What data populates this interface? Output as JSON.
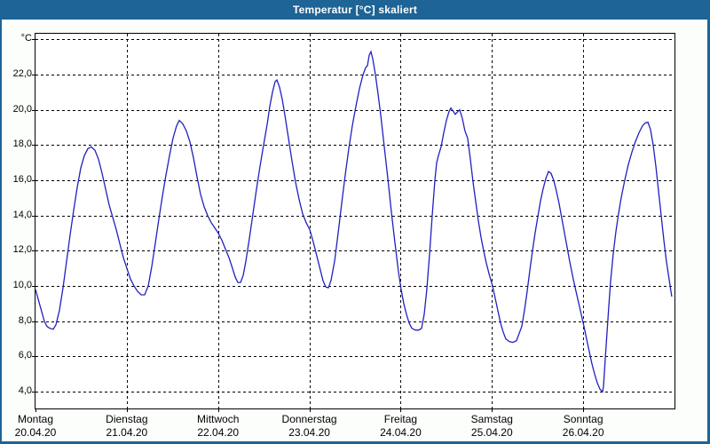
{
  "window": {
    "title": "Temperatur [°C] skaliert"
  },
  "colors": {
    "title_bar": "#1e6496",
    "title_text": "#ffffff",
    "window_border": "#1e6496",
    "window_background": "#fcfefc",
    "plot_background": "#ffffff",
    "plot_border": "#000000",
    "gridline": "#000000",
    "series_line": "#2020c0",
    "label_text": "#000000"
  },
  "chart_data": {
    "type": "line",
    "title": "Temperatur [°C] skaliert",
    "y_unit_label": "°C",
    "ylabel": "Temperatur",
    "xlabel": "",
    "grid": "dashed",
    "legend": "none",
    "ylim": [
      3.05,
      24.32
    ],
    "xlim_days": [
      0,
      7
    ],
    "y_gridlines": [
      4,
      6,
      8,
      10,
      12,
      14,
      16,
      18,
      20,
      22,
      24
    ],
    "y_tick_labels": [
      {
        "value": 4,
        "label": "4,0"
      },
      {
        "value": 6,
        "label": "6,0"
      },
      {
        "value": 8,
        "label": "8,0"
      },
      {
        "value": 10,
        "label": "10,0"
      },
      {
        "value": 12,
        "label": "12,0"
      },
      {
        "value": 14,
        "label": "14,0"
      },
      {
        "value": 16,
        "label": "16,0"
      },
      {
        "value": 18,
        "label": "18,0"
      },
      {
        "value": 20,
        "label": "20,0"
      },
      {
        "value": 22,
        "label": "22,0"
      },
      {
        "value": 24,
        "label": "°C"
      }
    ],
    "x_ticks": [
      {
        "day": 0,
        "name": "Montag",
        "date": "20.04.20"
      },
      {
        "day": 1,
        "name": "Dienstag",
        "date": "21.04.20"
      },
      {
        "day": 2,
        "name": "Mittwoch",
        "date": "22.04.20"
      },
      {
        "day": 3,
        "name": "Donnerstag",
        "date": "23.04.20"
      },
      {
        "day": 4,
        "name": "Freitag",
        "date": "24.04.20"
      },
      {
        "day": 5,
        "name": "Samstag",
        "date": "25.04.20"
      },
      {
        "day": 6,
        "name": "Sonntag",
        "date": "26.04.20"
      }
    ],
    "series": [
      {
        "name": "Temperatur",
        "color": "#2020c0",
        "points": [
          [
            0.0,
            9.8
          ],
          [
            0.049,
            8.9
          ],
          [
            0.097,
            8.0
          ],
          [
            0.126,
            7.7
          ],
          [
            0.156,
            7.6
          ],
          [
            0.194,
            7.55
          ],
          [
            0.224,
            7.8
          ],
          [
            0.262,
            8.6
          ],
          [
            0.301,
            9.9
          ],
          [
            0.34,
            11.4
          ],
          [
            0.379,
            12.9
          ],
          [
            0.418,
            14.3
          ],
          [
            0.457,
            15.6
          ],
          [
            0.496,
            16.7
          ],
          [
            0.535,
            17.4
          ],
          [
            0.574,
            17.8
          ],
          [
            0.612,
            17.9
          ],
          [
            0.651,
            17.7
          ],
          [
            0.69,
            17.2
          ],
          [
            0.729,
            16.4
          ],
          [
            0.768,
            15.5
          ],
          [
            0.807,
            14.6
          ],
          [
            0.846,
            13.9
          ],
          [
            0.885,
            13.2
          ],
          [
            0.924,
            12.4
          ],
          [
            0.963,
            11.6
          ],
          [
            1.001,
            11.0
          ],
          [
            1.04,
            10.4
          ],
          [
            1.079,
            10.0
          ],
          [
            1.118,
            9.7
          ],
          [
            1.157,
            9.5
          ],
          [
            1.196,
            9.5
          ],
          [
            1.235,
            10.0
          ],
          [
            1.274,
            11.1
          ],
          [
            1.312,
            12.4
          ],
          [
            1.351,
            13.8
          ],
          [
            1.39,
            15.1
          ],
          [
            1.429,
            16.3
          ],
          [
            1.468,
            17.4
          ],
          [
            1.507,
            18.4
          ],
          [
            1.546,
            19.1
          ],
          [
            1.575,
            19.4
          ],
          [
            1.614,
            19.2
          ],
          [
            1.653,
            18.8
          ],
          [
            1.691,
            18.2
          ],
          [
            1.73,
            17.3
          ],
          [
            1.769,
            16.2
          ],
          [
            1.808,
            15.2
          ],
          [
            1.847,
            14.5
          ],
          [
            1.886,
            14.0
          ],
          [
            1.925,
            13.6
          ],
          [
            1.964,
            13.3
          ],
          [
            2.003,
            13.0
          ],
          [
            2.042,
            12.6
          ],
          [
            2.081,
            12.1
          ],
          [
            2.12,
            11.6
          ],
          [
            2.158,
            11.0
          ],
          [
            2.188,
            10.5
          ],
          [
            2.217,
            10.2
          ],
          [
            2.246,
            10.2
          ],
          [
            2.275,
            10.6
          ],
          [
            2.304,
            11.4
          ],
          [
            2.343,
            12.7
          ],
          [
            2.382,
            14.1
          ],
          [
            2.421,
            15.5
          ],
          [
            2.46,
            16.8
          ],
          [
            2.499,
            18.0
          ],
          [
            2.538,
            19.2
          ],
          [
            2.567,
            20.2
          ],
          [
            2.596,
            21.0
          ],
          [
            2.625,
            21.6
          ],
          [
            2.644,
            21.7
          ],
          [
            2.673,
            21.3
          ],
          [
            2.703,
            20.6
          ],
          [
            2.732,
            19.7
          ],
          [
            2.771,
            18.4
          ],
          [
            2.81,
            17.1
          ],
          [
            2.849,
            15.9
          ],
          [
            2.888,
            14.9
          ],
          [
            2.926,
            14.1
          ],
          [
            2.965,
            13.6
          ],
          [
            3.004,
            13.2
          ],
          [
            3.043,
            12.5
          ],
          [
            3.082,
            11.7
          ],
          [
            3.121,
            10.9
          ],
          [
            3.15,
            10.3
          ],
          [
            3.179,
            9.95
          ],
          [
            3.208,
            9.9
          ],
          [
            3.237,
            10.3
          ],
          [
            3.276,
            11.4
          ],
          [
            3.315,
            13.0
          ],
          [
            3.354,
            14.7
          ],
          [
            3.393,
            16.3
          ],
          [
            3.432,
            17.8
          ],
          [
            3.471,
            19.1
          ],
          [
            3.51,
            20.2
          ],
          [
            3.549,
            21.2
          ],
          [
            3.588,
            22.0
          ],
          [
            3.617,
            22.4
          ],
          [
            3.636,
            22.5
          ],
          [
            3.656,
            23.1
          ],
          [
            3.675,
            23.3
          ],
          [
            3.694,
            22.9
          ],
          [
            3.724,
            22.0
          ],
          [
            3.753,
            20.9
          ],
          [
            3.782,
            19.7
          ],
          [
            3.821,
            17.9
          ],
          [
            3.86,
            16.1
          ],
          [
            3.899,
            14.2
          ],
          [
            3.937,
            12.5
          ],
          [
            3.976,
            10.8
          ],
          [
            4.006,
            9.8
          ],
          [
            4.035,
            9.0
          ],
          [
            4.064,
            8.4
          ],
          [
            4.093,
            7.9
          ],
          [
            4.122,
            7.6
          ],
          [
            4.161,
            7.5
          ],
          [
            4.2,
            7.5
          ],
          [
            4.229,
            7.6
          ],
          [
            4.258,
            8.4
          ],
          [
            4.287,
            9.8
          ],
          [
            4.317,
            11.8
          ],
          [
            4.346,
            14.0
          ],
          [
            4.375,
            16.0
          ],
          [
            4.394,
            17.0
          ],
          [
            4.414,
            17.4
          ],
          [
            4.443,
            17.9
          ],
          [
            4.472,
            18.7
          ],
          [
            4.501,
            19.4
          ],
          [
            4.53,
            19.9
          ],
          [
            4.55,
            20.1
          ],
          [
            4.579,
            19.9
          ],
          [
            4.598,
            19.75
          ],
          [
            4.627,
            19.9
          ],
          [
            4.647,
            20.0
          ],
          [
            4.676,
            19.5
          ],
          [
            4.705,
            18.8
          ],
          [
            4.734,
            18.4
          ],
          [
            4.764,
            17.2
          ],
          [
            4.793,
            15.9
          ],
          [
            4.822,
            14.8
          ],
          [
            4.851,
            13.7
          ],
          [
            4.88,
            12.8
          ],
          [
            4.909,
            12.0
          ],
          [
            4.939,
            11.3
          ],
          [
            4.968,
            10.7
          ],
          [
            5.007,
            10.0
          ],
          [
            5.036,
            9.3
          ],
          [
            5.065,
            8.6
          ],
          [
            5.094,
            7.9
          ],
          [
            5.123,
            7.4
          ],
          [
            5.152,
            7.0
          ],
          [
            5.191,
            6.85
          ],
          [
            5.23,
            6.8
          ],
          [
            5.269,
            6.9
          ],
          [
            5.298,
            7.3
          ],
          [
            5.327,
            7.7
          ],
          [
            5.356,
            8.6
          ],
          [
            5.386,
            9.7
          ],
          [
            5.415,
            10.9
          ],
          [
            5.444,
            12.0
          ],
          [
            5.473,
            13.0
          ],
          [
            5.502,
            13.9
          ],
          [
            5.531,
            14.8
          ],
          [
            5.56,
            15.5
          ],
          [
            5.59,
            16.1
          ],
          [
            5.619,
            16.5
          ],
          [
            5.648,
            16.4
          ],
          [
            5.677,
            16.0
          ],
          [
            5.706,
            15.4
          ],
          [
            5.735,
            14.7
          ],
          [
            5.774,
            13.6
          ],
          [
            5.813,
            12.5
          ],
          [
            5.852,
            11.4
          ],
          [
            5.891,
            10.4
          ],
          [
            5.93,
            9.5
          ],
          [
            5.969,
            8.6
          ],
          [
            6.008,
            7.7
          ],
          [
            6.037,
            7.0
          ],
          [
            6.066,
            6.3
          ],
          [
            6.095,
            5.6
          ],
          [
            6.125,
            5.0
          ],
          [
            6.154,
            4.5
          ],
          [
            6.183,
            4.15
          ],
          [
            6.212,
            4.0
          ],
          [
            6.222,
            4.3
          ],
          [
            6.241,
            5.8
          ],
          [
            6.26,
            7.3
          ],
          [
            6.28,
            8.8
          ],
          [
            6.299,
            10.2
          ],
          [
            6.328,
            11.8
          ],
          [
            6.358,
            13.1
          ],
          [
            6.387,
            14.1
          ],
          [
            6.416,
            15.0
          ],
          [
            6.455,
            16.0
          ],
          [
            6.494,
            16.9
          ],
          [
            6.533,
            17.6
          ],
          [
            6.572,
            18.2
          ],
          [
            6.611,
            18.7
          ],
          [
            6.65,
            19.1
          ],
          [
            6.679,
            19.25
          ],
          [
            6.708,
            19.3
          ],
          [
            6.737,
            18.9
          ],
          [
            6.767,
            18.0
          ],
          [
            6.796,
            16.8
          ],
          [
            6.825,
            15.4
          ],
          [
            6.854,
            14.0
          ],
          [
            6.883,
            12.6
          ],
          [
            6.912,
            11.4
          ],
          [
            6.941,
            10.4
          ],
          [
            6.97,
            9.4
          ]
        ]
      }
    ]
  }
}
